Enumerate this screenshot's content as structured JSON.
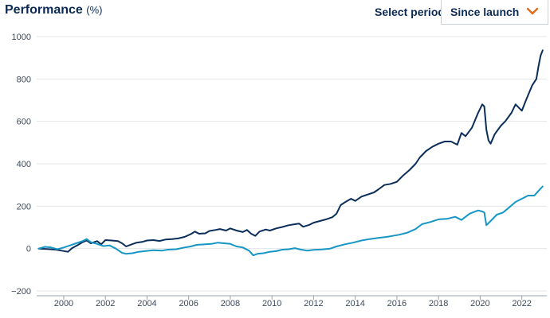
{
  "header": {
    "title": "Performance",
    "title_unit": "(%)",
    "period_label": "Select period:",
    "period_value": "Since launch"
  },
  "icons": {
    "dropdown": "chevron-down-icon"
  },
  "colors": {
    "series_dark": "#0b2d5a",
    "series_light": "#1596c4",
    "grid": "#e3e6ea",
    "chevron": "#e06a1a"
  },
  "chart_data": {
    "type": "line",
    "title": "",
    "xlabel": "",
    "ylabel": "",
    "xlim": [
      1998.7,
      2023.2
    ],
    "ylim": [
      -200,
      1000
    ],
    "yticks": [
      "1000",
      "800",
      "600",
      "400",
      "200",
      "0",
      "−200"
    ],
    "xticks": [
      "2000",
      "2002",
      "2004",
      "2006",
      "2008",
      "2010",
      "2012",
      "2014",
      "2016",
      "2018",
      "2020",
      "2022"
    ],
    "grid": true,
    "legend": "none",
    "series": [
      {
        "color": "#0b2d5a",
        "points": [
          [
            1998.8,
            0
          ],
          [
            1999.2,
            -2
          ],
          [
            1999.6,
            -5
          ],
          [
            1999.9,
            -10
          ],
          [
            2000.2,
            -15
          ],
          [
            2000.4,
            2
          ],
          [
            2000.7,
            18
          ],
          [
            2000.9,
            30
          ],
          [
            2001.1,
            38
          ],
          [
            2001.3,
            25
          ],
          [
            2001.6,
            35
          ],
          [
            2001.8,
            20
          ],
          [
            2002.0,
            40
          ],
          [
            2002.3,
            38
          ],
          [
            2002.6,
            35
          ],
          [
            2002.8,
            25
          ],
          [
            2003.0,
            10
          ],
          [
            2003.2,
            18
          ],
          [
            2003.5,
            28
          ],
          [
            2003.8,
            32
          ],
          [
            2004.0,
            38
          ],
          [
            2004.3,
            40
          ],
          [
            2004.6,
            36
          ],
          [
            2004.9,
            43
          ],
          [
            2005.2,
            45
          ],
          [
            2005.5,
            48
          ],
          [
            2005.8,
            55
          ],
          [
            2006.1,
            68
          ],
          [
            2006.3,
            80
          ],
          [
            2006.5,
            70
          ],
          [
            2006.8,
            72
          ],
          [
            2007.0,
            83
          ],
          [
            2007.3,
            88
          ],
          [
            2007.5,
            92
          ],
          [
            2007.8,
            85
          ],
          [
            2008.0,
            95
          ],
          [
            2008.3,
            85
          ],
          [
            2008.6,
            78
          ],
          [
            2008.8,
            88
          ],
          [
            2009.0,
            70
          ],
          [
            2009.2,
            60
          ],
          [
            2009.4,
            80
          ],
          [
            2009.7,
            90
          ],
          [
            2009.9,
            85
          ],
          [
            2010.2,
            95
          ],
          [
            2010.5,
            102
          ],
          [
            2010.8,
            110
          ],
          [
            2011.1,
            115
          ],
          [
            2011.3,
            118
          ],
          [
            2011.5,
            103
          ],
          [
            2011.8,
            112
          ],
          [
            2012.0,
            122
          ],
          [
            2012.3,
            130
          ],
          [
            2012.6,
            138
          ],
          [
            2012.9,
            148
          ],
          [
            2013.1,
            165
          ],
          [
            2013.3,
            205
          ],
          [
            2013.5,
            218
          ],
          [
            2013.8,
            235
          ],
          [
            2014.0,
            225
          ],
          [
            2014.3,
            245
          ],
          [
            2014.6,
            255
          ],
          [
            2014.9,
            265
          ],
          [
            2015.1,
            278
          ],
          [
            2015.4,
            300
          ],
          [
            2015.7,
            305
          ],
          [
            2016.0,
            315
          ],
          [
            2016.3,
            345
          ],
          [
            2016.6,
            370
          ],
          [
            2016.9,
            400
          ],
          [
            2017.1,
            430
          ],
          [
            2017.4,
            460
          ],
          [
            2017.7,
            480
          ],
          [
            2018.0,
            495
          ],
          [
            2018.3,
            505
          ],
          [
            2018.6,
            505
          ],
          [
            2018.9,
            490
          ],
          [
            2019.1,
            545
          ],
          [
            2019.3,
            530
          ],
          [
            2019.6,
            570
          ],
          [
            2019.9,
            640
          ],
          [
            2020.1,
            680
          ],
          [
            2020.2,
            670
          ],
          [
            2020.3,
            560
          ],
          [
            2020.4,
            510
          ],
          [
            2020.5,
            495
          ],
          [
            2020.7,
            540
          ],
          [
            2021.0,
            580
          ],
          [
            2021.2,
            600
          ],
          [
            2021.5,
            640
          ],
          [
            2021.7,
            680
          ],
          [
            2022.0,
            650
          ],
          [
            2022.2,
            700
          ],
          [
            2022.5,
            770
          ],
          [
            2022.7,
            800
          ],
          [
            2022.8,
            860
          ],
          [
            2022.9,
            910
          ],
          [
            2023.0,
            935
          ]
        ]
      },
      {
        "color": "#1596c4",
        "points": [
          [
            1998.8,
            0
          ],
          [
            1999.1,
            8
          ],
          [
            1999.4,
            5
          ],
          [
            1999.7,
            -3
          ],
          [
            2000.0,
            5
          ],
          [
            2000.3,
            15
          ],
          [
            2000.6,
            25
          ],
          [
            2000.9,
            35
          ],
          [
            2001.1,
            45
          ],
          [
            2001.3,
            30
          ],
          [
            2001.6,
            22
          ],
          [
            2001.9,
            12
          ],
          [
            2002.2,
            15
          ],
          [
            2002.5,
            0
          ],
          [
            2002.8,
            -20
          ],
          [
            2003.0,
            -25
          ],
          [
            2003.3,
            -22
          ],
          [
            2003.6,
            -15
          ],
          [
            2003.9,
            -12
          ],
          [
            2004.3,
            -8
          ],
          [
            2004.7,
            -10
          ],
          [
            2005.0,
            -5
          ],
          [
            2005.4,
            -3
          ],
          [
            2005.8,
            5
          ],
          [
            2006.1,
            10
          ],
          [
            2006.4,
            18
          ],
          [
            2006.8,
            20
          ],
          [
            2007.1,
            22
          ],
          [
            2007.4,
            28
          ],
          [
            2007.7,
            25
          ],
          [
            2008.0,
            22
          ],
          [
            2008.3,
            10
          ],
          [
            2008.6,
            5
          ],
          [
            2008.9,
            -10
          ],
          [
            2009.1,
            -32
          ],
          [
            2009.3,
            -25
          ],
          [
            2009.6,
            -22
          ],
          [
            2009.9,
            -15
          ],
          [
            2010.2,
            -12
          ],
          [
            2010.5,
            -5
          ],
          [
            2010.8,
            -3
          ],
          [
            2011.1,
            2
          ],
          [
            2011.4,
            -5
          ],
          [
            2011.7,
            -10
          ],
          [
            2012.0,
            -6
          ],
          [
            2012.4,
            -4
          ],
          [
            2012.8,
            0
          ],
          [
            2013.1,
            10
          ],
          [
            2013.5,
            20
          ],
          [
            2013.9,
            28
          ],
          [
            2014.3,
            38
          ],
          [
            2014.7,
            45
          ],
          [
            2015.1,
            50
          ],
          [
            2015.5,
            55
          ],
          [
            2015.8,
            60
          ],
          [
            2016.1,
            65
          ],
          [
            2016.5,
            75
          ],
          [
            2016.9,
            92
          ],
          [
            2017.2,
            115
          ],
          [
            2017.6,
            125
          ],
          [
            2018.0,
            138
          ],
          [
            2018.4,
            140
          ],
          [
            2018.8,
            150
          ],
          [
            2019.1,
            135
          ],
          [
            2019.5,
            165
          ],
          [
            2019.9,
            180
          ],
          [
            2020.1,
            175
          ],
          [
            2020.2,
            170
          ],
          [
            2020.3,
            110
          ],
          [
            2020.5,
            130
          ],
          [
            2020.8,
            160
          ],
          [
            2021.1,
            170
          ],
          [
            2021.4,
            195
          ],
          [
            2021.7,
            220
          ],
          [
            2022.0,
            235
          ],
          [
            2022.3,
            250
          ],
          [
            2022.6,
            250
          ],
          [
            2022.8,
            272
          ],
          [
            2023.0,
            293
          ]
        ]
      }
    ]
  }
}
